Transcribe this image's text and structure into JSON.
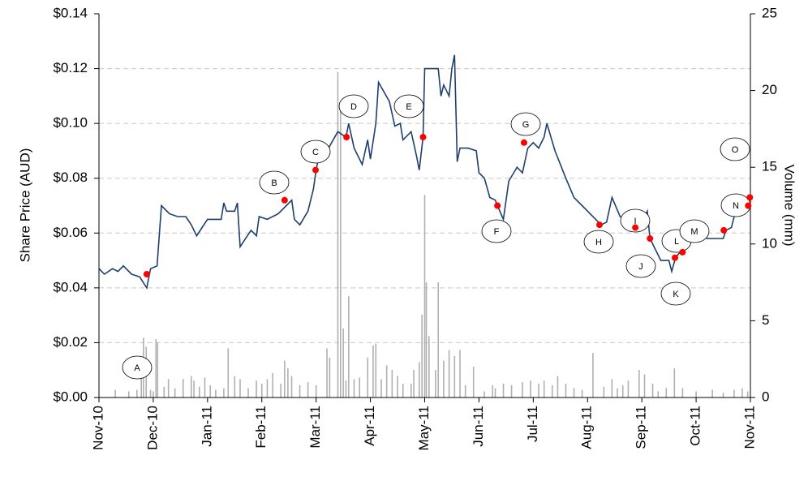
{
  "chart_data": {
    "type": "line",
    "ylabel": "Share Price (AUD)",
    "y2label": "Volume (mm)",
    "xlim": [
      0,
      12
    ],
    "xticks": [
      {
        "value": 0,
        "label": "Nov-10"
      },
      {
        "value": 1,
        "label": "Dec-10"
      },
      {
        "value": 2,
        "label": "Jan-11"
      },
      {
        "value": 3,
        "label": "Feb-11"
      },
      {
        "value": 4,
        "label": "Mar-11"
      },
      {
        "value": 5,
        "label": "Apr-11"
      },
      {
        "value": 6,
        "label": "May-11"
      },
      {
        "value": 7,
        "label": "Jun-11"
      },
      {
        "value": 8,
        "label": "Jul-11"
      },
      {
        "value": 9,
        "label": "Aug-11"
      },
      {
        "value": 10,
        "label": "Sep-11"
      },
      {
        "value": 11,
        "label": "Oct-11"
      },
      {
        "value": 12,
        "label": "Nov-11"
      }
    ],
    "ylim": [
      0,
      0.14
    ],
    "yticks": [
      {
        "value": 0,
        "label": "$0.00"
      },
      {
        "value": 0.02,
        "label": "$0.02"
      },
      {
        "value": 0.04,
        "label": "$0.04"
      },
      {
        "value": 0.06,
        "label": "$0.06"
      },
      {
        "value": 0.08,
        "label": "$0.08"
      },
      {
        "value": 0.1,
        "label": "$0.10"
      },
      {
        "value": 0.12,
        "label": "$0.12"
      },
      {
        "value": 0.14,
        "label": "$0.14"
      }
    ],
    "y2lim": [
      0,
      25
    ],
    "y2ticks": [
      0,
      5,
      10,
      15,
      20,
      25
    ],
    "grid": true,
    "series": [
      {
        "type": "line",
        "color": "#1f3f6e",
        "x": [
          0,
          0.1,
          0.25,
          0.35,
          0.45,
          0.6,
          0.75,
          0.88,
          0.95,
          1.07,
          1.15,
          1.3,
          1.45,
          1.6,
          1.7,
          1.8,
          1.9,
          2.0,
          2.25,
          2.3,
          2.35,
          2.5,
          2.55,
          2.6,
          2.8,
          2.9,
          2.95,
          3.1,
          3.3,
          3.45,
          3.55,
          3.6,
          3.7,
          3.85,
          3.95,
          4.0,
          4.05,
          4.2,
          4.4,
          4.55,
          4.6,
          4.7,
          4.85,
          4.95,
          5.0,
          5.1,
          5.15,
          5.35,
          5.45,
          5.55,
          5.6,
          5.75,
          5.85,
          5.9,
          5.97,
          6.0,
          6.25,
          6.3,
          6.35,
          6.45,
          6.5,
          6.55,
          6.6,
          6.65,
          6.8,
          6.95,
          7.0,
          7.1,
          7.2,
          7.3,
          7.34,
          7.45,
          7.55,
          7.7,
          7.8,
          7.9,
          8.0,
          8.1,
          8.2,
          8.25,
          8.4,
          8.6,
          8.75,
          8.9,
          9.0,
          9.15,
          9.25,
          9.35,
          9.45,
          9.6,
          9.75,
          9.9,
          10.0,
          10.1,
          10.15,
          10.35,
          10.5,
          10.55,
          10.62,
          10.7,
          10.8,
          11.0,
          11.2,
          11.5,
          11.55,
          11.65,
          11.75,
          11.85,
          11.95,
          12.0
        ],
        "values": [
          0.047,
          0.045,
          0.047,
          0.046,
          0.048,
          0.045,
          0.044,
          0.04,
          0.047,
          0.048,
          0.07,
          0.067,
          0.066,
          0.066,
          0.063,
          0.059,
          0.062,
          0.065,
          0.065,
          0.071,
          0.068,
          0.068,
          0.071,
          0.055,
          0.061,
          0.059,
          0.066,
          0.065,
          0.067,
          0.07,
          0.072,
          0.065,
          0.063,
          0.068,
          0.076,
          0.083,
          0.088,
          0.09,
          0.097,
          0.095,
          0.1,
          0.091,
          0.085,
          0.094,
          0.087,
          0.1,
          0.115,
          0.108,
          0.099,
          0.1,
          0.094,
          0.097,
          0.088,
          0.083,
          0.095,
          0.12,
          0.12,
          0.11,
          0.114,
          0.11,
          0.12,
          0.125,
          0.086,
          0.091,
          0.091,
          0.09,
          0.082,
          0.08,
          0.073,
          0.072,
          0.07,
          0.065,
          0.079,
          0.084,
          0.082,
          0.091,
          0.093,
          0.091,
          0.095,
          0.1,
          0.09,
          0.08,
          0.073,
          0.07,
          0.068,
          0.065,
          0.063,
          0.064,
          0.073,
          0.066,
          0.065,
          0.063,
          0.064,
          0.068,
          0.058,
          0.05,
          0.05,
          0.046,
          0.051,
          0.053,
          0.06,
          0.06,
          0.058,
          0.058,
          0.061,
          0.062,
          0.07,
          0.068,
          0.073,
          0.072
        ]
      },
      {
        "type": "bar",
        "axis": "y2",
        "color": "#b0b0b0",
        "x": [
          0.3,
          0.55,
          0.7,
          0.78,
          0.82,
          0.87,
          0.95,
          1.0,
          1.05,
          1.08,
          1.2,
          1.28,
          1.4,
          1.55,
          1.7,
          1.75,
          1.85,
          1.95,
          2.05,
          2.15,
          2.3,
          2.38,
          2.5,
          2.6,
          2.75,
          2.9,
          3.0,
          3.1,
          3.2,
          3.35,
          3.42,
          3.48,
          3.55,
          3.7,
          3.85,
          4.0,
          4.2,
          4.25,
          4.4,
          4.45,
          4.5,
          4.55,
          4.6,
          4.7,
          4.8,
          4.95,
          5.05,
          5.1,
          5.2,
          5.3,
          5.4,
          5.5,
          5.6,
          5.75,
          5.8,
          5.9,
          5.95,
          6.0,
          6.03,
          6.08,
          6.2,
          6.25,
          6.35,
          6.45,
          6.55,
          6.65,
          6.75,
          6.9,
          7.1,
          7.25,
          7.3,
          7.45,
          7.6,
          7.8,
          7.95,
          8.1,
          8.2,
          8.35,
          8.45,
          8.6,
          8.75,
          8.9,
          9.1,
          9.3,
          9.45,
          9.55,
          9.65,
          9.75,
          9.95,
          10.05,
          10.2,
          10.3,
          10.45,
          10.6,
          10.75,
          11.0,
          11.3,
          11.5,
          11.7,
          11.85,
          11.95
        ],
        "values": [
          0.5,
          0.4,
          0.5,
          2.5,
          3.9,
          3.3,
          0.5,
          0.4,
          3.8,
          3.6,
          0.7,
          1.2,
          0.6,
          1.2,
          1.4,
          1.1,
          0.7,
          1.3,
          0.8,
          0.5,
          0.6,
          3.2,
          1.4,
          1.2,
          0.6,
          1.1,
          0.9,
          1.2,
          1.6,
          0.9,
          2.4,
          1.9,
          1.4,
          0.8,
          1.0,
          0.8,
          3.2,
          2.6,
          21.2,
          19.0,
          4.5,
          1.1,
          6.6,
          1.2,
          1.3,
          2.6,
          3.4,
          3.5,
          1.2,
          2.1,
          1.8,
          1.4,
          0.9,
          0.9,
          1.8,
          2.3,
          5.4,
          13.2,
          7.5,
          4.0,
          1.8,
          7.5,
          2.4,
          3.1,
          2.7,
          3.1,
          0.8,
          2.0,
          0.4,
          0.8,
          0.6,
          0.9,
          0.8,
          1.0,
          1.1,
          0.9,
          1.1,
          0.8,
          1.4,
          0.9,
          0.6,
          0.5,
          2.9,
          0.7,
          1.2,
          0.6,
          0.8,
          1.1,
          1.8,
          1.5,
          0.9,
          0.4,
          0.6,
          1.9,
          0.6,
          0.4,
          0.5,
          0.3,
          0.5,
          0.6,
          0.4
        ]
      }
    ],
    "events": {
      "color": "#ff0000",
      "labels": [
        "A",
        "B",
        "C",
        "D",
        "E",
        "F",
        "G",
        "H",
        "I",
        "J",
        "K",
        "L",
        "M",
        "N",
        "O"
      ],
      "x": [
        0.88,
        3.42,
        3.99,
        4.56,
        5.97,
        7.34,
        7.83,
        9.22,
        9.88,
        10.15,
        10.61,
        10.75,
        11.51,
        11.96,
        11.99
      ],
      "values": [
        0.045,
        0.072,
        0.083,
        0.095,
        0.095,
        0.07,
        0.093,
        0.063,
        0.062,
        0.058,
        0.051,
        0.053,
        0.061,
        0.07,
        0.073
      ]
    }
  }
}
